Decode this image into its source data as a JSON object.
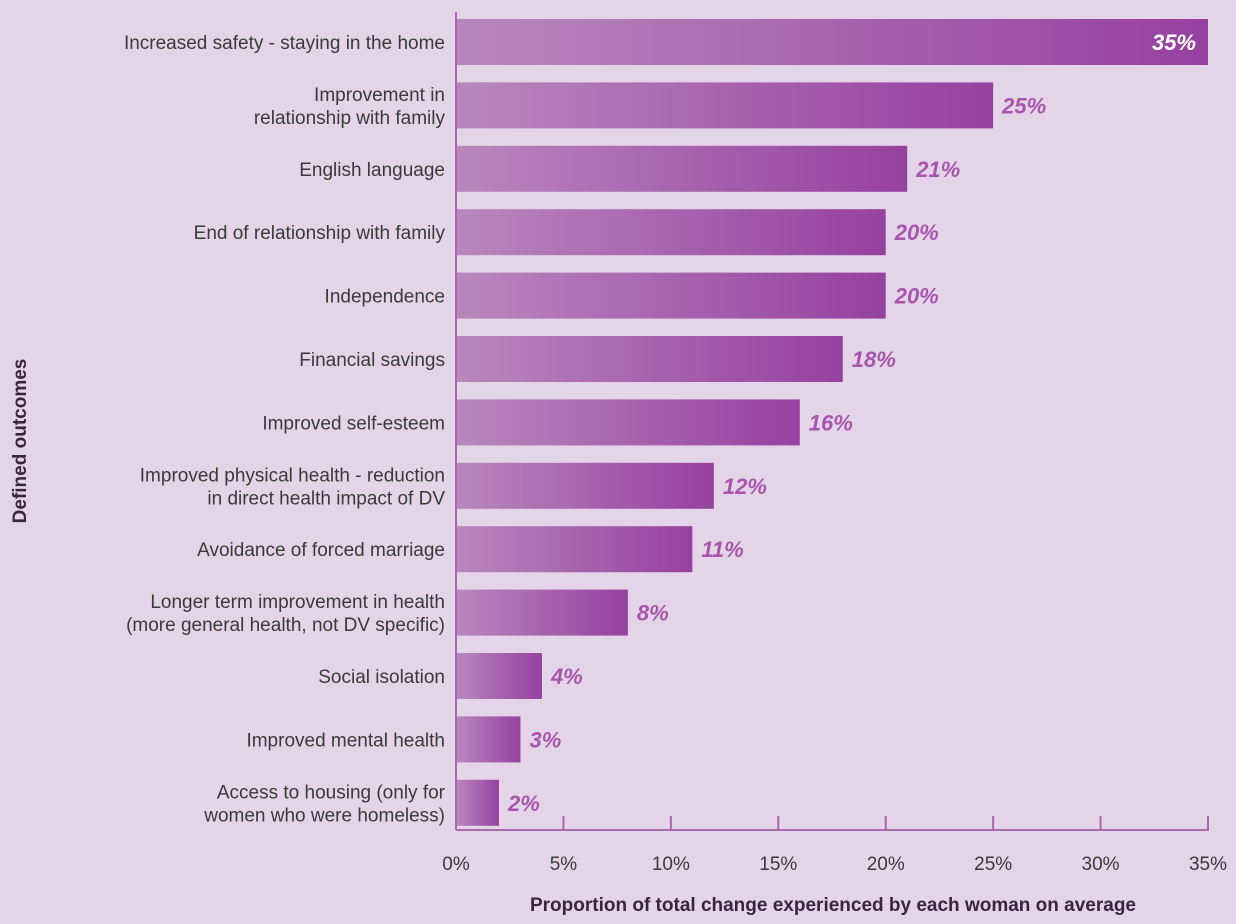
{
  "chart_data": {
    "type": "bar",
    "orientation": "horizontal",
    "title": "",
    "xlabel": "Proportion of total change experienced by each woman on average",
    "ylabel": "Defined outcomes",
    "xlim": [
      0,
      35
    ],
    "x_ticks": [
      0,
      5,
      10,
      15,
      20,
      25,
      30,
      35
    ],
    "x_tick_labels": [
      "0%",
      "5%",
      "10%",
      "15%",
      "20%",
      "25%",
      "30%",
      "35%"
    ],
    "grid": false,
    "categories": [
      [
        "Increased safety - staying in the home"
      ],
      [
        "Improvement in",
        "relationship with family"
      ],
      [
        "English language"
      ],
      [
        "End of relationship with family"
      ],
      [
        "Independence"
      ],
      [
        "Financial savings"
      ],
      [
        "Improved self-esteem"
      ],
      [
        "Improved physical health - reduction",
        "in direct health impact of DV"
      ],
      [
        "Avoidance of forced marriage"
      ],
      [
        "Longer term improvement in health",
        "(more general health, not DV specific)"
      ],
      [
        "Social isolation"
      ],
      [
        "Improved mental health"
      ],
      [
        "Access to housing (only for",
        "women who were homeless)"
      ]
    ],
    "values": [
      35,
      25,
      21,
      20,
      20,
      18,
      16,
      12,
      11,
      8,
      4,
      3,
      2
    ],
    "value_labels": [
      "35%",
      "25%",
      "21%",
      "20%",
      "20%",
      "18%",
      "16%",
      "12%",
      "11%",
      "8%",
      "4%",
      "3%",
      "2%"
    ],
    "colors": {
      "bar_start": "#b987bd",
      "bar_end": "#9641a0",
      "value_label": "#a855ad",
      "value_label_inside": "#ffffff",
      "axis": "#a86aae",
      "background": "#e4d4e7"
    }
  }
}
